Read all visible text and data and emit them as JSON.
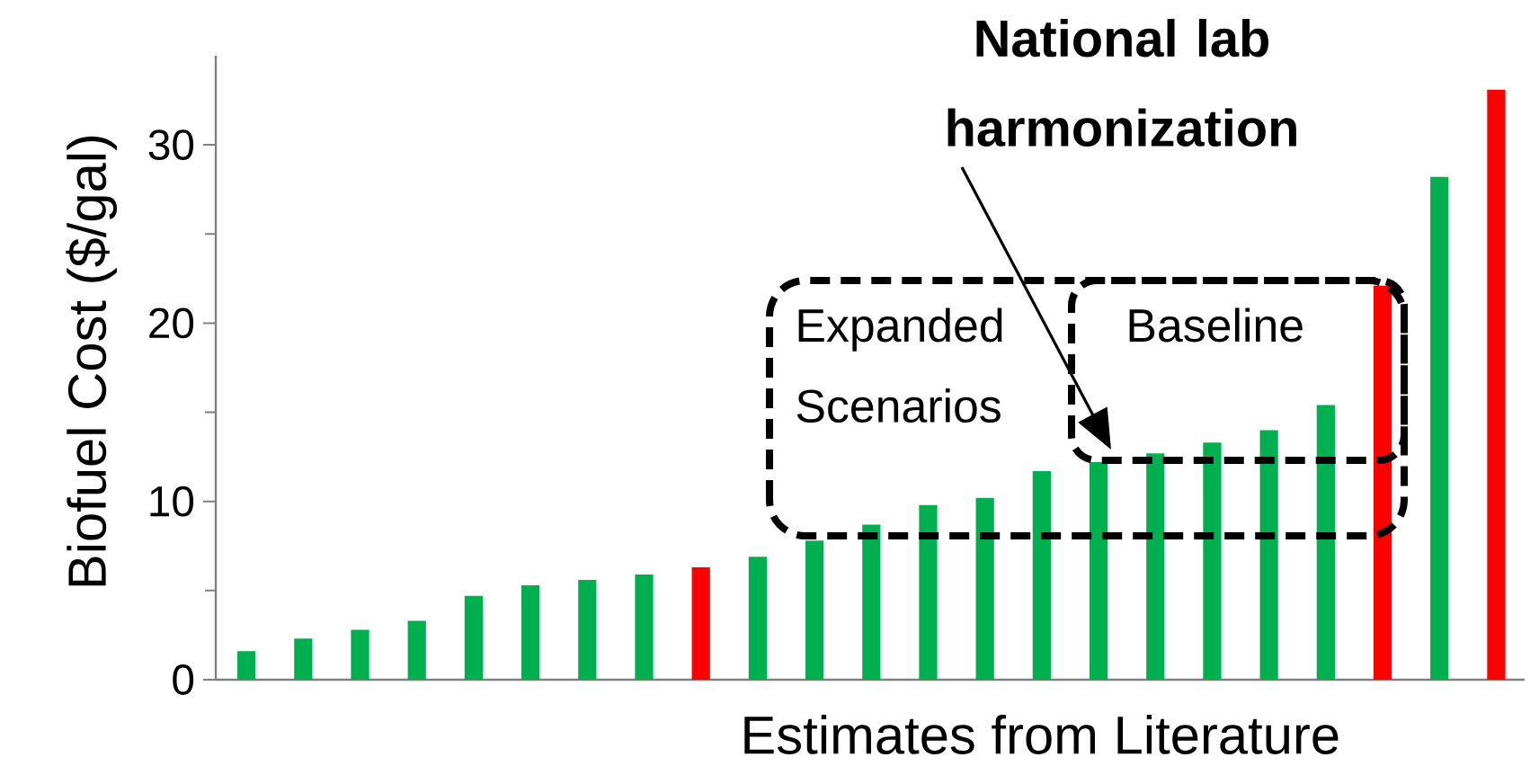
{
  "chart_data": {
    "type": "bar",
    "xlabel": "Estimates from Literature",
    "ylabel": "Biofuel Cost ($/gal)",
    "categories": [
      null,
      null,
      null,
      null,
      null,
      null,
      null,
      null,
      null,
      null,
      null,
      null,
      null,
      null,
      null,
      null,
      null,
      null,
      null,
      null,
      null,
      null,
      null
    ],
    "values": [
      1.6,
      2.3,
      2.8,
      3.3,
      4.7,
      5.3,
      5.6,
      5.9,
      6.3,
      6.9,
      7.8,
      8.7,
      9.8,
      10.2,
      11.7,
      12.2,
      12.7,
      13.3,
      14.0,
      15.4,
      22.1,
      28.2,
      33.1
    ],
    "colors": [
      "#00b050",
      "#00b050",
      "#00b050",
      "#00b050",
      "#00b050",
      "#00b050",
      "#00b050",
      "#00b050",
      "#ff0000",
      "#00b050",
      "#00b050",
      "#00b050",
      "#00b050",
      "#00b050",
      "#00b050",
      "#00b050",
      "#00b050",
      "#00b050",
      "#00b050",
      "#00b050",
      "#ff0000",
      "#00b050",
      "#ff0000"
    ],
    "ylim": [
      0,
      35
    ],
    "yticks": [
      0,
      10,
      20,
      30
    ],
    "tick_labels": "y",
    "annotations": [
      "National lab harmonization",
      "Expanded Scenarios",
      "Baseline"
    ]
  }
}
